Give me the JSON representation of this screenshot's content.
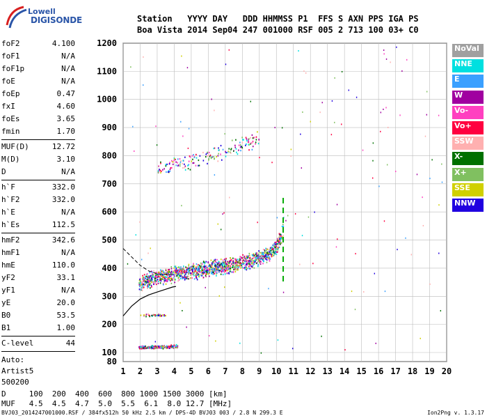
{
  "logo": {
    "brand": "Lowell",
    "product": "DIGISONDE"
  },
  "header": {
    "row1": "Station   YYYY DAY   DDD HHMMSS P1  FFS S AXN PPS IGA PS",
    "row2": "Boa Vista 2014 Sep04 247 001000 RSF 005 2 713 100 03+ C0"
  },
  "params": [
    [
      [
        "foF2",
        "4.100"
      ],
      [
        "foF1",
        "N/A"
      ],
      [
        "foF1p",
        "N/A"
      ],
      [
        "foE",
        "N/A"
      ],
      [
        "foEp",
        "0.47"
      ],
      [
        "fxI",
        "4.60"
      ],
      [
        "foEs",
        "3.65"
      ],
      [
        "fmin",
        "1.70"
      ]
    ],
    [
      [
        "MUF(D)",
        "12.72"
      ],
      [
        "M(D)",
        "3.10"
      ],
      [
        "D",
        "N/A"
      ]
    ],
    [
      [
        "h`F",
        "332.0"
      ],
      [
        "h`F2",
        "332.0"
      ],
      [
        "h`E",
        "N/A"
      ],
      [
        "h`Es",
        "112.5"
      ]
    ],
    [
      [
        "hmF2",
        "342.6"
      ],
      [
        "hmF1",
        "N/A"
      ],
      [
        "hmE",
        "110.0"
      ],
      [
        "yF2",
        "33.1"
      ],
      [
        "yF1",
        "N/A"
      ],
      [
        "yE",
        "20.0"
      ],
      [
        "B0",
        "53.5"
      ],
      [
        "B1",
        "1.00"
      ]
    ],
    [
      [
        "C-level",
        "44"
      ]
    ]
  ],
  "auto": {
    "l1": "Auto:",
    "l2": "Artist5",
    "l3": "500200"
  },
  "legend": [
    {
      "label": "NoVal",
      "color": "#a0a0a0"
    },
    {
      "label": "NNE",
      "color": "#00e0e0"
    },
    {
      "label": "E",
      "color": "#3aa0ff"
    },
    {
      "label": "W",
      "color": "#a000a0"
    },
    {
      "label": "Vo-",
      "color": "#ff40c0"
    },
    {
      "label": "Vo+",
      "color": "#ff0040"
    },
    {
      "label": "SSW",
      "color": "#ffb0b0"
    },
    {
      "label": "X-",
      "color": "#007000"
    },
    {
      "label": "X+",
      "color": "#80c060"
    },
    {
      "label": "SSE",
      "color": "#d0d000"
    },
    {
      "label": "NNW",
      "color": "#2000e0"
    }
  ],
  "bottom": {
    "line1": "D     100  200  400  600  800 1000 1500 3000 [km]",
    "line2": "MUF   4.5  4.5  4.7  5.0  5.5  6.1  8.0 12.7 [MHz]"
  },
  "footer": "BVJ03_2014247001000.RSF / 384fx512h 50 kHz 2.5 km / DPS-4D BVJ03 003 / 2.8 N 299.3 E",
  "version": "Ion2Png v. 1.3.17",
  "chart_data": {
    "type": "scatter",
    "xlabel": "",
    "ylabel": "",
    "xlim": [
      1,
      20
    ],
    "ylim": [
      80,
      1200
    ],
    "xticks": [
      1,
      2,
      3,
      4,
      5,
      6,
      7,
      8,
      9,
      10,
      11,
      12,
      13,
      14,
      15,
      16,
      17,
      18,
      19,
      20
    ],
    "yticks": [
      80,
      100,
      200,
      300,
      400,
      500,
      600,
      700,
      800,
      900,
      1000,
      1100,
      1200
    ],
    "grid": true,
    "legend_position": "right",
    "trace_F": {
      "description_points": [
        [
          1.9,
          350
        ],
        [
          2.5,
          362
        ],
        [
          3.5,
          375
        ],
        [
          4.5,
          385
        ],
        [
          5.5,
          395
        ],
        [
          6.5,
          405
        ],
        [
          7.5,
          415
        ],
        [
          8.5,
          430
        ],
        [
          9.5,
          450
        ],
        [
          10.0,
          480
        ],
        [
          10.3,
          520
        ],
        [
          10.4,
          560
        ]
      ]
    },
    "trace_2F": [
      [
        3.0,
        750
      ],
      [
        4.0,
        765
      ],
      [
        5.0,
        780
      ],
      [
        6.0,
        800
      ],
      [
        7.0,
        820
      ],
      [
        8.0,
        845
      ],
      [
        9.0,
        860
      ]
    ],
    "trace_Es": [
      [
        1.9,
        120
      ],
      [
        2.5,
        120
      ],
      [
        3.0,
        122
      ],
      [
        3.5,
        122
      ],
      [
        4.2,
        125
      ]
    ],
    "trace_Es2": [
      [
        2.0,
        235
      ],
      [
        3.5,
        235
      ]
    ],
    "profile_curve": [
      [
        1.0,
        230
      ],
      [
        1.5,
        265
      ],
      [
        2.0,
        290
      ],
      [
        2.5,
        305
      ],
      [
        3.0,
        315
      ],
      [
        3.5,
        325
      ],
      [
        3.9,
        333
      ],
      [
        4.1,
        335
      ]
    ],
    "dashed_curve": [
      [
        1.0,
        470
      ],
      [
        1.5,
        440
      ],
      [
        2.0,
        410
      ],
      [
        2.5,
        390
      ],
      [
        3.0,
        380
      ],
      [
        3.5,
        378
      ],
      [
        4.0,
        378
      ]
    ]
  }
}
